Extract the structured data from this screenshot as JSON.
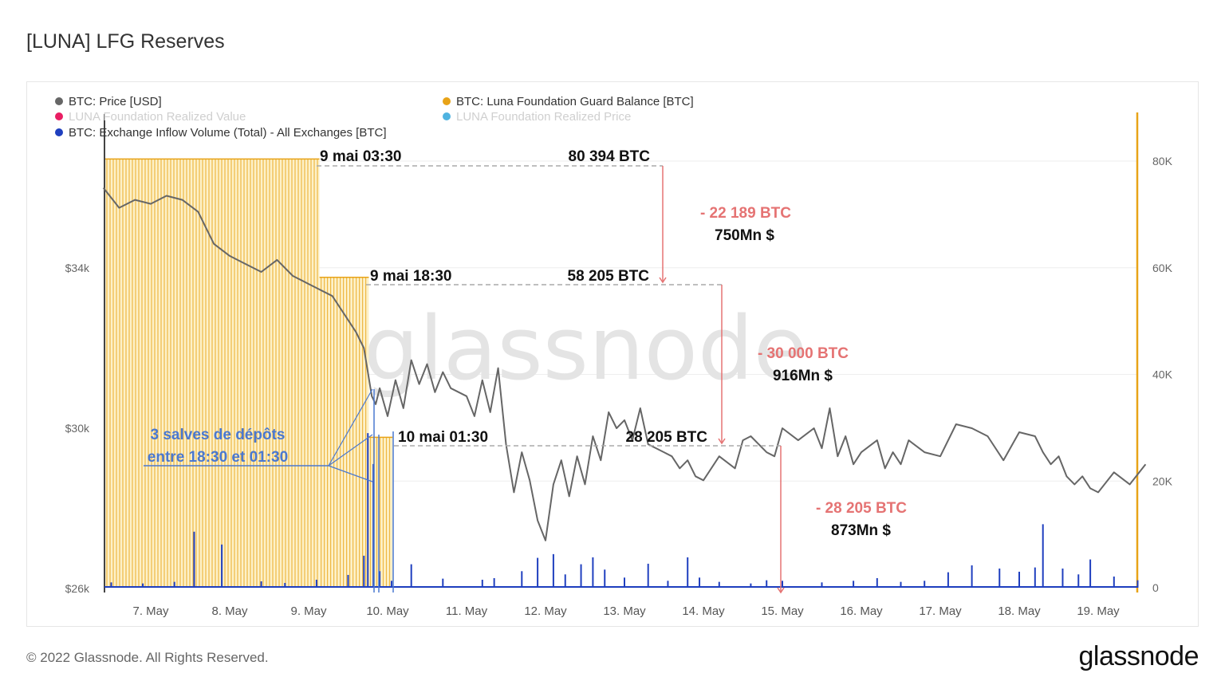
{
  "title": "[LUNA] LFG Reserves",
  "footer": {
    "copyright": "© 2022 Glassnode. All Rights Reserved.",
    "logo": "glassnode"
  },
  "watermark": "glassnode",
  "colors": {
    "price": "#666666",
    "balance": "#e8a317",
    "inflow": "#1f3fbf",
    "annotation_red": "#e57373",
    "annotation_blue": "#4a78d0"
  },
  "chart_data": {
    "type": "line",
    "legend": [
      {
        "label": "BTC: Price [USD]",
        "color": "#666666",
        "faded": false
      },
      {
        "label": "BTC: Luna Foundation Guard Balance [BTC]",
        "color": "#e8a317",
        "faded": false
      },
      {
        "label": "LUNA Foundation Realized Value",
        "color": "#e91e63",
        "faded": true
      },
      {
        "label": "LUNA Foundation Realized Price",
        "color": "#4fb3e0",
        "faded": true
      },
      {
        "label": "BTC: Exchange Inflow Volume (Total) - All Exchanges [BTC]",
        "color": "#1f3fbf",
        "faded": false
      }
    ],
    "x_ticks": [
      "7. May",
      "8. May",
      "9. May",
      "10. May",
      "11. May",
      "12. May",
      "13. May",
      "14. May",
      "15. May",
      "16. May",
      "17. May",
      "18. May",
      "19. May"
    ],
    "y_left": {
      "ticks": [
        "$34k",
        "$30k",
        "$26k"
      ],
      "values": [
        34000,
        30000,
        26000
      ]
    },
    "y_right": {
      "ticks": [
        "80K",
        "60K",
        "40K",
        "20K",
        "0"
      ],
      "values": [
        80000,
        60000,
        40000,
        20000,
        0
      ]
    },
    "series": [
      {
        "name": "BTC: Price [USD]",
        "x": [
          6.4,
          6.6,
          6.8,
          7.0,
          7.2,
          7.4,
          7.6,
          7.8,
          8.0,
          8.2,
          8.4,
          8.6,
          8.8,
          9.0,
          9.1,
          9.3,
          9.5,
          9.6,
          9.7,
          9.8,
          9.85,
          9.9,
          10.0,
          10.1,
          10.2,
          10.3,
          10.4,
          10.5,
          10.6,
          10.7,
          10.8,
          11.0,
          11.1,
          11.2,
          11.3,
          11.4,
          11.5,
          11.6,
          11.7,
          11.8,
          11.9,
          12.0,
          12.1,
          12.2,
          12.3,
          12.4,
          12.5,
          12.6,
          12.7,
          12.8,
          12.9,
          13.0,
          13.1,
          13.2,
          13.3,
          13.4,
          13.5,
          13.6,
          13.7,
          13.8,
          13.9,
          14.0,
          14.2,
          14.4,
          14.5,
          14.6,
          14.8,
          14.9,
          15.0,
          15.2,
          15.4,
          15.5,
          15.6,
          15.7,
          15.8,
          15.9,
          16.0,
          16.2,
          16.3,
          16.4,
          16.5,
          16.6,
          16.8,
          17.0,
          17.2,
          17.4,
          17.6,
          17.8,
          18.0,
          18.2,
          18.3,
          18.4,
          18.5,
          18.6,
          18.7,
          18.8,
          18.9,
          19.0,
          19.2,
          19.4,
          19.6
        ],
        "values": [
          36000,
          35500,
          35700,
          35600,
          35800,
          35700,
          35400,
          34600,
          34300,
          34100,
          33900,
          34200,
          33800,
          33600,
          33500,
          33300,
          32700,
          32400,
          32000,
          30800,
          30600,
          31000,
          30300,
          31200,
          30500,
          31700,
          31100,
          31600,
          30900,
          31400,
          31000,
          30800,
          30300,
          31200,
          30400,
          31500,
          29600,
          28400,
          29400,
          28700,
          27700,
          27200,
          28600,
          29200,
          28300,
          29300,
          28600,
          29800,
          29200,
          30400,
          30000,
          30200,
          29700,
          30500,
          29600,
          29500,
          29400,
          29300,
          29000,
          29200,
          28800,
          28700,
          29300,
          29000,
          29700,
          29800,
          29400,
          29300,
          30000,
          29700,
          30000,
          29500,
          30500,
          29300,
          29800,
          29100,
          29400,
          29700,
          29000,
          29400,
          29100,
          29700,
          29400,
          29300,
          30100,
          30000,
          29800,
          29200,
          29900,
          29800,
          29400,
          29100,
          29300,
          28800,
          28600,
          28800,
          28500,
          28400,
          28900,
          28600,
          29100
        ]
      },
      {
        "name": "BTC: Luna Foundation Guard Balance [BTC]",
        "x": [
          6.4,
          9.1375,
          9.1375,
          9.7625,
          9.7625,
          10.0625,
          10.0625,
          19.6
        ],
        "values": [
          80394,
          80394,
          58205,
          58205,
          28205,
          28205,
          0,
          0
        ]
      },
      {
        "name": "BTC: Exchange Inflow Volume (Total) - All Exchanges [BTC]",
        "x": [
          6.5,
          6.9,
          7.3,
          7.55,
          7.9,
          8.4,
          8.7,
          9.1,
          9.5,
          9.7,
          9.75,
          9.82,
          9.9,
          10.05,
          10.3,
          10.7,
          11.2,
          11.35,
          11.7,
          11.9,
          12.1,
          12.25,
          12.45,
          12.6,
          12.75,
          13.0,
          13.3,
          13.55,
          13.8,
          13.95,
          14.2,
          14.6,
          14.8,
          15.0,
          15.5,
          15.9,
          16.2,
          16.5,
          16.8,
          17.1,
          17.4,
          17.75,
          18.0,
          18.2,
          18.3,
          18.55,
          18.75,
          18.9,
          19.2,
          19.5
        ],
        "values": [
          1000,
          800,
          1100,
          10500,
          8100,
          1200,
          900,
          1500,
          2400,
          6000,
          29000,
          23200,
          3100,
          1300,
          4400,
          1700,
          1500,
          1800,
          3100,
          5600,
          6300,
          2500,
          4400,
          5700,
          3400,
          1900,
          4500,
          1300,
          5700,
          1900,
          1100,
          800,
          1400,
          1300,
          1000,
          1300,
          1800,
          1100,
          1300,
          2900,
          4200,
          3600,
          3000,
          3800,
          11900,
          3600,
          2500,
          5300,
          2100,
          1400
        ]
      }
    ],
    "annotations": [
      {
        "text": "9 mai 03:30",
        "color": "black"
      },
      {
        "text": "80 394 BTC",
        "color": "black"
      },
      {
        "text": "- 22 189 BTC",
        "color": "red"
      },
      {
        "text": "750Mn $",
        "color": "black"
      },
      {
        "text": "9 mai 18:30",
        "color": "black"
      },
      {
        "text": "58 205 BTC",
        "color": "black"
      },
      {
        "text": "- 30 000 BTC",
        "color": "red"
      },
      {
        "text": "916Mn $",
        "color": "black"
      },
      {
        "text": "10 mai 01:30",
        "color": "black"
      },
      {
        "text": "28 205 BTC",
        "color": "black"
      },
      {
        "text": "- 28 205 BTC",
        "color": "red"
      },
      {
        "text": "873Mn $",
        "color": "black"
      },
      {
        "text": "3 salves de dépôts",
        "color": "blue"
      },
      {
        "text": "entre 18:30 et 01:30",
        "color": "blue"
      }
    ]
  }
}
